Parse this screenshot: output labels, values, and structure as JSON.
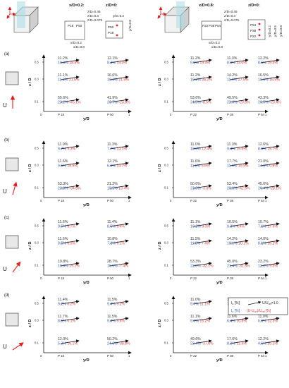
{
  "headers": {
    "left_section": "x/D=0.2:",
    "left_section_2": "z/D=0:",
    "right_section": "x/D=0.8:",
    "right_section_2": "z/D=0:"
  },
  "inset_labels": {
    "left_front": [
      "z/D=0.45",
      "z/D=0.3",
      "z/D=0.075"
    ],
    "left_front_x": "x/D=0.2",
    "left_top": "y/D=0.2",
    "left_top_y": "y/D=0.8",
    "left_side_y": "y/D=0.2",
    "left_side_x": "x/D=0.8",
    "left_points": [
      "P18",
      "P50"
    ],
    "right_front": [
      "z/D=0.45",
      "z/D=0.3",
      "z/D=0.075"
    ],
    "right_points": [
      "P22",
      "P38",
      "P54"
    ],
    "right_top_x": "x/D=0.2",
    "right_top_y": "y/D=0.8",
    "right_side": [
      "y/D=0.2",
      "y/D=0.5",
      "y/D=0.8"
    ],
    "right_side_x": "x/D=0.5",
    "right_side_x2": "x/D=0.8"
  },
  "axis": {
    "y_label": "y/D",
    "z_label": "z / D",
    "zero": "0",
    "one": "1",
    "ticks": [
      "0.5",
      "0.3",
      "0.1"
    ],
    "left_points": [
      "P 18",
      "P 50"
    ],
    "right_points": [
      "P 22",
      "P 38",
      "P 54"
    ]
  },
  "legend": {
    "line1_left": "I",
    "line1_sub": "u",
    "line1_rest": " [%]",
    "line1_right": "U/U",
    "line1_ref": "ref",
    "line1_val": "=1.0",
    "line2_left": "I",
    "line2_sub": "u",
    "line2_rest": " [%]",
    "line2_right": "(U-U",
    "line2_ref": "ref",
    "line2_end": ")/U",
    "line2_ref2": "ref",
    "line2_tail": " [%]",
    "colors": {
      "iu_blk": "#333333",
      "iu_blu": "#2a5bd7",
      "diff": "#e23b3b"
    }
  },
  "rows": [
    {
      "label": "(a)",
      "arrow": "U",
      "left": [
        [
          {
            "b": "11.2%",
            "u": "10.0%",
            "r": "18.8%"
          },
          {
            "b": "12.1%",
            "u": "8.3%",
            "r": "19.3%"
          }
        ],
        [
          {
            "b": "11.1%",
            "u": "11.2%",
            "r": "21.5%"
          },
          {
            "b": "16.6%",
            "u": "10.3%",
            "r": "21.5%"
          }
        ],
        [
          {
            "b": "55.6%",
            "u": "23.2%",
            "r": "-45.1%"
          },
          {
            "b": "41.9%",
            "u": "20.7%",
            "r": "-23.8%"
          }
        ]
      ],
      "right": [
        [
          {
            "b": "11.2%",
            "u": "9.9%",
            "r": "19.4%"
          },
          {
            "b": "11.3%",
            "u": "8.9%",
            "r": "23.0%"
          },
          {
            "b": "12.2%",
            "u": "8.5%",
            "r": "19.3%"
          }
        ],
        [
          {
            "b": "11.2%",
            "u": "10.2%",
            "r": "26.2%"
          },
          {
            "b": "14.2%",
            "u": "11.9%",
            "r": "27.5%"
          },
          {
            "b": "16.5%",
            "u": "10.6%",
            "r": "16.5%"
          }
        ],
        [
          {
            "b": "53.6%",
            "u": "24.5%",
            "r": "-8.6%"
          },
          {
            "b": "49.5%",
            "u": "22.0%",
            "r": "-20.6%"
          },
          {
            "b": "43.3%",
            "u": "20.5%",
            "r": "-23.4%"
          }
        ]
      ]
    },
    {
      "label": "(b)",
      "arrow": "U",
      "left": [
        [
          {
            "b": "11.9%",
            "u": "9.7%",
            "r": "5.3%"
          },
          {
            "b": "11.3%",
            "u": "7.7%",
            "r": "14.1%"
          }
        ],
        [
          {
            "b": "11.6%",
            "u": "9.5%",
            "r": "18.5%"
          },
          {
            "b": "12.1%",
            "u": "6.9%",
            "r": "14.7%"
          }
        ],
        [
          {
            "b": "53.3%",
            "u": "22.8%",
            "r": "-34.6%"
          },
          {
            "b": "21.2%",
            "u": "10.5%",
            "r": "13.4%"
          }
        ]
      ],
      "right": [
        [
          {
            "b": "11.0%",
            "u": "10.3%",
            "r": "12.4%"
          },
          {
            "b": "11.3%",
            "u": "9.4%",
            "r": "15.6%"
          },
          {
            "b": "12.6%",
            "u": "8.9%",
            "r": "15.7%"
          }
        ],
        [
          {
            "b": "11.6%",
            "u": "11.8%",
            "r": "6.6%"
          },
          {
            "b": "17.7%",
            "u": "11.9%",
            "r": "19.9%"
          },
          {
            "b": "21.0%",
            "u": "14.6%",
            "r": "0.8%"
          }
        ],
        [
          {
            "b": "50.6%",
            "u": "23.0%",
            "r": "-3.0%"
          },
          {
            "b": "53.4%",
            "u": "20.6%",
            "r": "-42.5%"
          },
          {
            "b": "45.6%",
            "u": "20.4%",
            "r": "-28.1%"
          }
        ]
      ]
    },
    {
      "label": "(c)",
      "arrow": "U",
      "left": [
        [
          {
            "b": "11.6%",
            "u": "9.5%",
            "r": "5.7%"
          },
          {
            "b": "11.4%",
            "u": "8.5%",
            "r": "3.4%"
          }
        ],
        [
          {
            "b": "11.6%",
            "u": "8.5%",
            "r": "6.9%"
          },
          {
            "b": "10.8%",
            "u": "7.2%",
            "r": "9.1%"
          }
        ],
        [
          {
            "b": "19.8%",
            "u": "10.0%",
            "r": "19.2%"
          },
          {
            "b": "28.7%",
            "u": "16.5%",
            "r": "-7.4%"
          }
        ]
      ],
      "right": [
        [
          {
            "b": "11.1%",
            "u": "10.2%",
            "r": "9.0%"
          },
          {
            "b": "10.5%",
            "u": "9.3%",
            "r": "4.4%"
          },
          {
            "b": "10.7%",
            "u": "7.1%",
            "r": "17.6%"
          }
        ],
        [
          {
            "b": "11.5%",
            "u": "11.8%",
            "r": "7.4%"
          },
          {
            "b": "14.2%",
            "u": "10.1%",
            "r": "20.2%"
          },
          {
            "b": "14.0%",
            "u": "8.1%",
            "r": "16.2%"
          }
        ],
        [
          {
            "b": "53.3%",
            "u": "22.0%",
            "r": "-32.1%"
          },
          {
            "b": "45.0%",
            "u": "21.4%",
            "r": "-31.5%"
          },
          {
            "b": "23.2%",
            "u": "12.2%",
            "r": "9.3%"
          }
        ]
      ]
    },
    {
      "label": "(d)",
      "arrow": "U",
      "left": [
        [
          {
            "b": "11.4%",
            "u": "9.2%",
            "r": "0.2%"
          },
          {
            "b": "11.5%",
            "u": "9.4%",
            "r": "9.2%"
          }
        ],
        [
          {
            "b": "11.7%",
            "u": "8.5%",
            "r": "0.1%"
          },
          {
            "b": "11.5%",
            "u": "9.3%",
            "r": "9.6%"
          }
        ],
        [
          {
            "b": "12.0%",
            "u": "5.3%",
            "r": "15.1%"
          },
          {
            "b": "50.2%",
            "u": "24.6%",
            "r": "-38.8%"
          }
        ]
      ],
      "right": [
        [
          {
            "b": "11.0%",
            "u": "9.7%",
            "r": "11.1%"
          },
          {
            "b": "10.9%",
            "u": "7.9%",
            "r": "5.2%"
          },
          {
            "b": "10.6%",
            "u": "7.1%",
            "r": "12.6%"
          }
        ],
        [
          {
            "b": "11.1%",
            "u": "9.9%",
            "r": "15.2%"
          },
          {
            "b": "11.6%",
            "u": "6.4%",
            "r": "10.8%"
          },
          {
            "b": "11.0%",
            "u": "6.0%",
            "r": "12.3%"
          }
        ],
        [
          {
            "b": "49.6%",
            "u": "23.4%",
            "r": "-37.6%"
          },
          {
            "b": "17.6%",
            "u": "8.2%",
            "r": "12.9%"
          },
          {
            "b": "12.2%",
            "u": "4.5%",
            "r": "20.2%"
          }
        ]
      ]
    }
  ]
}
